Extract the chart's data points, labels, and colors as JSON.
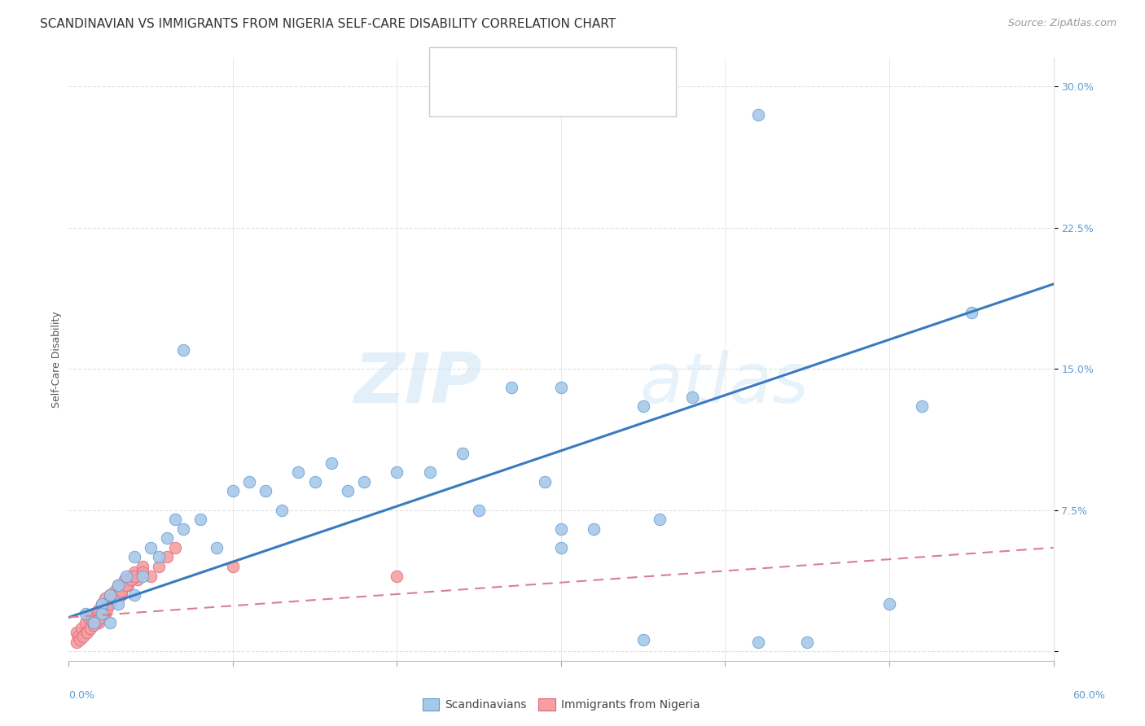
{
  "title": "SCANDINAVIAN VS IMMIGRANTS FROM NIGERIA SELF-CARE DISABILITY CORRELATION CHART",
  "source": "Source: ZipAtlas.com",
  "ylabel": "Self-Care Disability",
  "xlim": [
    0.0,
    0.6
  ],
  "ylim": [
    -0.005,
    0.315
  ],
  "background_color": "#ffffff",
  "grid_color": "#e0e0e0",
  "blue_color": "#a8c8e8",
  "blue_edge": "#5b9bd5",
  "pink_color": "#f4a0a0",
  "pink_edge": "#e06080",
  "line_blue": "#3a7abf",
  "line_pink": "#d88090",
  "yticks": [
    0.0,
    0.075,
    0.15,
    0.225,
    0.3
  ],
  "ytick_labels": [
    "",
    "7.5%",
    "15.0%",
    "22.5%",
    "30.0%"
  ],
  "blue_line_x": [
    0.0,
    0.6
  ],
  "blue_line_y": [
    0.018,
    0.195
  ],
  "pink_line_x": [
    0.0,
    0.6
  ],
  "pink_line_y": [
    0.018,
    0.055
  ],
  "scatter_blue_x": [
    0.01,
    0.015,
    0.02,
    0.02,
    0.025,
    0.025,
    0.03,
    0.03,
    0.035,
    0.04,
    0.04,
    0.045,
    0.05,
    0.055,
    0.06,
    0.065,
    0.07,
    0.07,
    0.08,
    0.09,
    0.1,
    0.11,
    0.12,
    0.13,
    0.14,
    0.15,
    0.16,
    0.17,
    0.18,
    0.2,
    0.22,
    0.24,
    0.25,
    0.27,
    0.29,
    0.3,
    0.32,
    0.35,
    0.38,
    0.3,
    0.36,
    0.45,
    0.5,
    0.52,
    0.55,
    0.3,
    0.35,
    0.42
  ],
  "scatter_blue_y": [
    0.02,
    0.015,
    0.025,
    0.02,
    0.03,
    0.015,
    0.035,
    0.025,
    0.04,
    0.03,
    0.05,
    0.04,
    0.055,
    0.05,
    0.06,
    0.07,
    0.16,
    0.065,
    0.07,
    0.055,
    0.085,
    0.09,
    0.085,
    0.075,
    0.095,
    0.09,
    0.1,
    0.085,
    0.09,
    0.095,
    0.095,
    0.105,
    0.075,
    0.14,
    0.09,
    0.065,
    0.065,
    0.13,
    0.135,
    0.055,
    0.07,
    0.005,
    0.025,
    0.13,
    0.18,
    0.14,
    0.006,
    0.005
  ],
  "scatter_blue_outlier_x": [
    0.42
  ],
  "scatter_blue_outlier_y": [
    0.285
  ],
  "scatter_pink_x": [
    0.005,
    0.006,
    0.008,
    0.01,
    0.01,
    0.012,
    0.014,
    0.015,
    0.016,
    0.018,
    0.018,
    0.02,
    0.022,
    0.022,
    0.024,
    0.025,
    0.026,
    0.028,
    0.03,
    0.032,
    0.034,
    0.036,
    0.038,
    0.04,
    0.042,
    0.045,
    0.05,
    0.055,
    0.06,
    0.065,
    0.005,
    0.007,
    0.009,
    0.011,
    0.013,
    0.015,
    0.017,
    0.019,
    0.021,
    0.023,
    0.025,
    0.027,
    0.03,
    0.032,
    0.035,
    0.038,
    0.04,
    0.045,
    0.1,
    0.2
  ],
  "scatter_pink_y": [
    0.01,
    0.008,
    0.012,
    0.015,
    0.01,
    0.018,
    0.015,
    0.02,
    0.018,
    0.022,
    0.015,
    0.025,
    0.02,
    0.028,
    0.025,
    0.03,
    0.028,
    0.032,
    0.035,
    0.03,
    0.038,
    0.035,
    0.04,
    0.042,
    0.038,
    0.045,
    0.04,
    0.045,
    0.05,
    0.055,
    0.005,
    0.006,
    0.008,
    0.01,
    0.012,
    0.014,
    0.016,
    0.018,
    0.02,
    0.022,
    0.025,
    0.028,
    0.03,
    0.032,
    0.035,
    0.038,
    0.04,
    0.042,
    0.045,
    0.04
  ],
  "watermark_zip": "ZIP",
  "watermark_atlas": "atlas",
  "title_fontsize": 11,
  "axis_label_fontsize": 9,
  "tick_fontsize": 9,
  "legend_fontsize": 12,
  "source_fontsize": 9
}
